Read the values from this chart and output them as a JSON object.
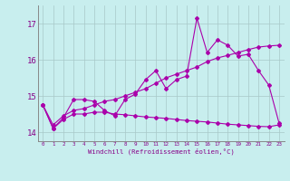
{
  "xlabel": "Windchill (Refroidissement éolien,°C)",
  "background_color": "#c8eeee",
  "line_color": "#aa00aa",
  "grid_color": "#a8c8c8",
  "x_ticks": [
    0,
    1,
    2,
    3,
    4,
    5,
    6,
    7,
    8,
    9,
    10,
    11,
    12,
    13,
    14,
    15,
    16,
    17,
    18,
    19,
    20,
    21,
    22,
    23
  ],
  "ylim": [
    13.75,
    17.5
  ],
  "y_ticks": [
    14,
    15,
    16,
    17
  ],
  "line1_y": [
    14.75,
    14.1,
    14.4,
    14.9,
    14.9,
    14.85,
    14.6,
    14.45,
    14.9,
    15.05,
    15.45,
    15.7,
    15.2,
    15.45,
    15.55,
    17.15,
    16.2,
    16.55,
    16.4,
    16.1,
    16.15,
    15.7,
    15.3,
    14.25
  ],
  "line2_y": [
    14.75,
    14.2,
    14.45,
    14.6,
    14.65,
    14.75,
    14.85,
    14.9,
    15.0,
    15.1,
    15.2,
    15.35,
    15.5,
    15.6,
    15.7,
    15.8,
    15.95,
    16.05,
    16.12,
    16.2,
    16.28,
    16.35,
    16.38,
    16.4
  ],
  "line3_y": [
    14.75,
    14.1,
    14.35,
    14.5,
    14.5,
    14.55,
    14.55,
    14.5,
    14.48,
    14.45,
    14.42,
    14.4,
    14.38,
    14.35,
    14.32,
    14.3,
    14.28,
    14.25,
    14.22,
    14.2,
    14.18,
    14.16,
    14.15,
    14.2
  ]
}
